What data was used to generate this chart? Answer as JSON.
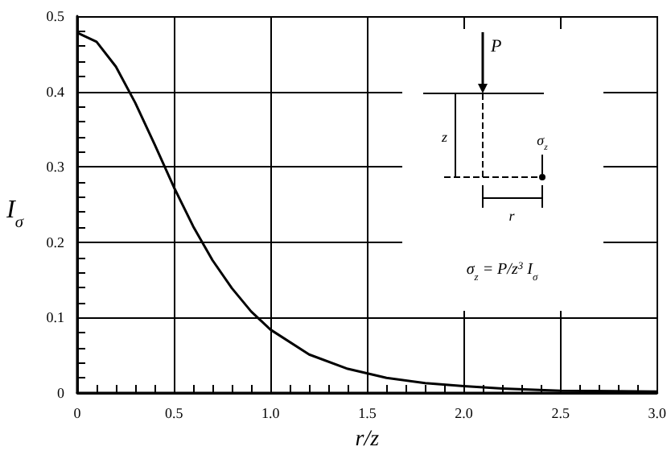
{
  "chart_data": {
    "type": "line",
    "xlabel": "r/z",
    "ylabel": "I$_{σ}$",
    "x": [
      0,
      0.1,
      0.2,
      0.3,
      0.4,
      0.5,
      0.6,
      0.7,
      0.8,
      0.9,
      1.0,
      1.2,
      1.4,
      1.6,
      1.8,
      2.0,
      2.2,
      2.5,
      3.0
    ],
    "series": [
      {
        "color": "#000000",
        "values": [
          0.478,
          0.466,
          0.433,
          0.385,
          0.33,
          0.273,
          0.221,
          0.176,
          0.139,
          0.108,
          0.084,
          0.051,
          0.032,
          0.02,
          0.013,
          0.009,
          0.006,
          0.003,
          0.002
        ]
      }
    ],
    "xlim": [
      0,
      3
    ],
    "ylim": [
      0,
      0.5
    ],
    "xticks": [
      0,
      {
        "value": 0.5,
        "label": "0.5"
      },
      {
        "value": 1,
        "label": "1.0"
      },
      {
        "value": 1.5,
        "label": "1.5"
      },
      {
        "value": 2,
        "label": "2.0"
      },
      {
        "value": 2.5,
        "label": "2.5"
      },
      {
        "value": 3,
        "label": "3.0"
      }
    ],
    "yticks": [
      0,
      0.1,
      0.2,
      0.3,
      0.4,
      0.5
    ],
    "grid": true,
    "marker": "none",
    "line_style": "solid",
    "annotations": [
      "P",
      "z",
      "r",
      "σ$_{z}$",
      "σ$_{z}$ = P/z$^{3}$ I$_{σ}$"
    ]
  }
}
